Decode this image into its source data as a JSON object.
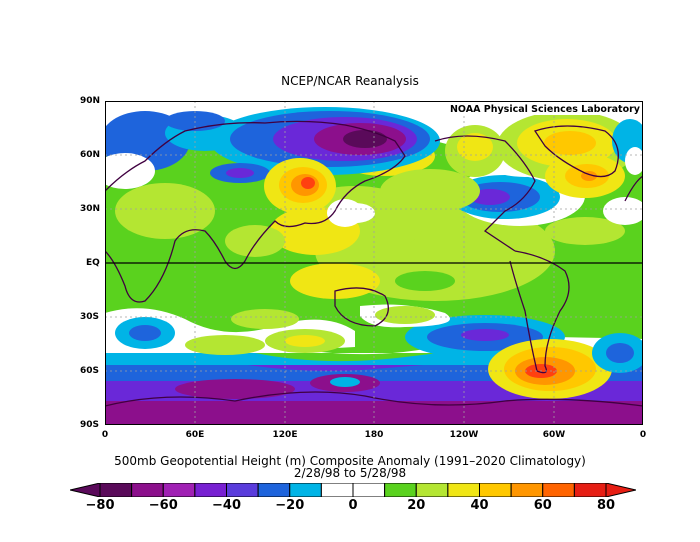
{
  "title": "NCEP/NCAR Reanalysis",
  "credit": "NOAA Physical Sciences Laboratory",
  "lat_labels": [
    "90N",
    "60N",
    "30N",
    "EQ",
    "30S",
    "60S",
    "90S"
  ],
  "lon_labels": [
    "0",
    "60E",
    "120E",
    "180",
    "120W",
    "60W",
    "0"
  ],
  "caption": {
    "line1": "500mb Geopotential Height (m) Composite Anomaly (1991–2020 Climatology)",
    "line2": "2/28/98   to 5/28/98"
  },
  "colorbar": {
    "labels": [
      "−80",
      "−60",
      "−40",
      "−20",
      "0",
      "20",
      "40",
      "60",
      "80"
    ],
    "colors": [
      "#5a0a5a",
      "#8c0f8c",
      "#a020b4",
      "#7820d2",
      "#5a3cdc",
      "#1e64dc",
      "#00b4e6",
      "#ffffff",
      "#ffffff",
      "#5ad21e",
      "#b4e632",
      "#f0e614",
      "#ffc800",
      "#ff9600",
      "#ff6400",
      "#e61e14"
    ]
  },
  "map": {
    "anomaly_levels": {
      "strong_neg": "#5a0a5a",
      "neg4": "#8c0f8c",
      "neg3": "#a020b4",
      "neg2": "#6a28d8",
      "neg1": "#1e64dc",
      "weak_neg": "#00b4e6",
      "neutral": "#ffffff",
      "weak_pos": "#5ad21e",
      "pos2": "#b4e632",
      "pos3": "#f0e614",
      "pos4": "#ffc800",
      "pos5": "#ff9600",
      "strong_pos": "#ff4010"
    }
  }
}
